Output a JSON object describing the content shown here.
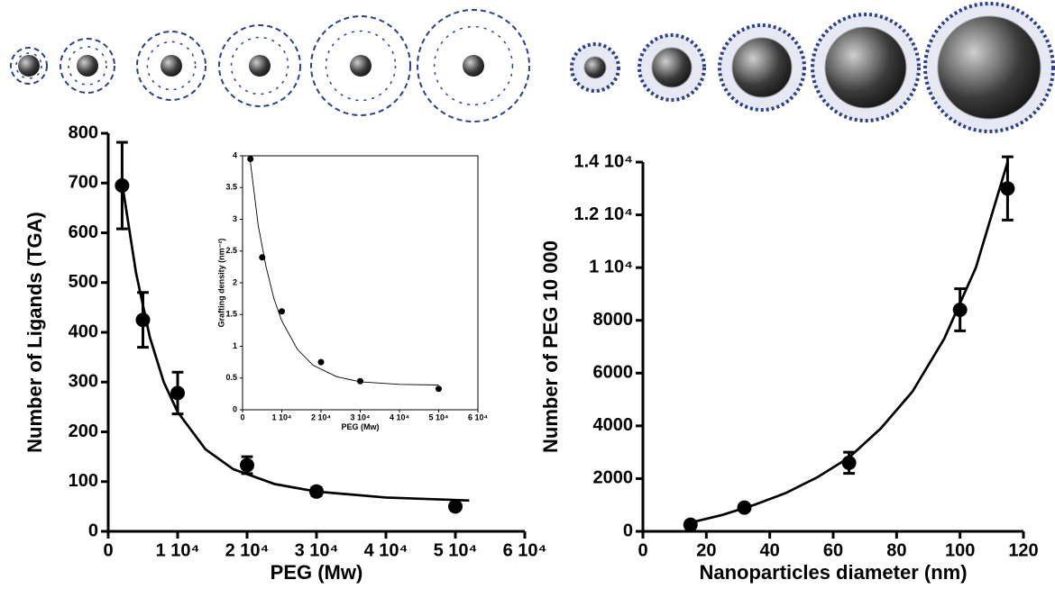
{
  "chart_data": [
    {
      "type": "scatter",
      "x_label": "PEG (Mw)",
      "y_label": "Number of Ligands (TGA)",
      "xlim": [
        0,
        60000
      ],
      "ylim": [
        0,
        800
      ],
      "xticks": [
        0,
        {
          "value": 10000,
          "label": "1 10⁴"
        },
        {
          "value": 20000,
          "label": "2 10⁴"
        },
        {
          "value": 30000,
          "label": "3 10⁴"
        },
        {
          "value": 40000,
          "label": "4 10⁴"
        },
        {
          "value": 50000,
          "label": "5 10⁴"
        },
        {
          "value": 60000,
          "label": "6 10⁴"
        }
      ],
      "yticks": [
        0,
        100,
        200,
        300,
        400,
        500,
        600,
        700,
        800
      ],
      "series": [
        {
          "color": "#000000",
          "x": [
            2000,
            5000,
            10000,
            20000,
            30000,
            50000
          ],
          "values": [
            695,
            425,
            278,
            133,
            80,
            50
          ],
          "errors": [
            87,
            55,
            42,
            17,
            8,
            5
          ]
        }
      ],
      "fit": {
        "color": "#000000",
        "x": [
          2000,
          4000,
          6000,
          8000,
          10000,
          14000,
          18000,
          24000,
          30000,
          40000,
          52000
        ],
        "values": [
          700,
          520,
          390,
          300,
          240,
          165,
          125,
          95,
          80,
          68,
          62
        ]
      }
    },
    {
      "type": "scatter",
      "x_label": "PEG (Mw)",
      "y_label": "Grafting density (nm⁻²)",
      "xlim": [
        0,
        60000
      ],
      "ylim": [
        0,
        4
      ],
      "xticks": [
        0,
        {
          "value": 10000,
          "label": "1 10⁴"
        },
        {
          "value": 20000,
          "label": "2 10⁴"
        },
        {
          "value": 30000,
          "label": "3 10⁴"
        },
        {
          "value": 40000,
          "label": "4 10⁴"
        },
        {
          "value": 50000,
          "label": "5 10⁴"
        },
        {
          "value": 60000,
          "label": "6 10⁴"
        }
      ],
      "yticks": [
        0,
        0.5,
        1,
        1.5,
        2,
        2.5,
        3,
        3.5,
        4
      ],
      "series": [
        {
          "color": "#000000",
          "x": [
            2000,
            5000,
            10000,
            20000,
            30000,
            50000
          ],
          "values": [
            3.95,
            2.4,
            1.55,
            0.75,
            0.45,
            0.33
          ]
        }
      ],
      "fit": {
        "color": "#000000",
        "x": [
          2000,
          4000,
          6000,
          8000,
          10000,
          14000,
          18000,
          24000,
          30000,
          40000,
          50000
        ],
        "values": [
          3.9,
          2.9,
          2.25,
          1.75,
          1.4,
          0.95,
          0.7,
          0.52,
          0.44,
          0.4,
          0.39
        ]
      }
    },
    {
      "type": "scatter",
      "x_label": "Nanoparticles diameter (nm)",
      "y_label": "Number of PEG 10 000",
      "xlim": [
        0,
        120
      ],
      "ylim": [
        0,
        14000
      ],
      "xticks": [
        0,
        20,
        40,
        60,
        80,
        100,
        120
      ],
      "yticks": [
        0,
        2000,
        4000,
        6000,
        8000,
        {
          "value": 10000,
          "label": "1 10⁴"
        },
        {
          "value": 12000,
          "label": "1.2 10⁴"
        },
        {
          "value": 14000,
          "label": "1.4 10⁴"
        }
      ],
      "series": [
        {
          "color": "#000000",
          "x": [
            15,
            32,
            65,
            100,
            115
          ],
          "values": [
            250,
            900,
            2600,
            8400,
            13000
          ],
          "errors": [
            0,
            0,
            400,
            800,
            1200
          ]
        }
      ],
      "fit": {
        "color": "#000000",
        "x": [
          15,
          25,
          35,
          45,
          55,
          65,
          75,
          85,
          95,
          105,
          115
        ],
        "values": [
          330,
          620,
          1000,
          1450,
          2050,
          2800,
          3900,
          5300,
          7300,
          10000,
          14000
        ]
      }
    }
  ]
}
